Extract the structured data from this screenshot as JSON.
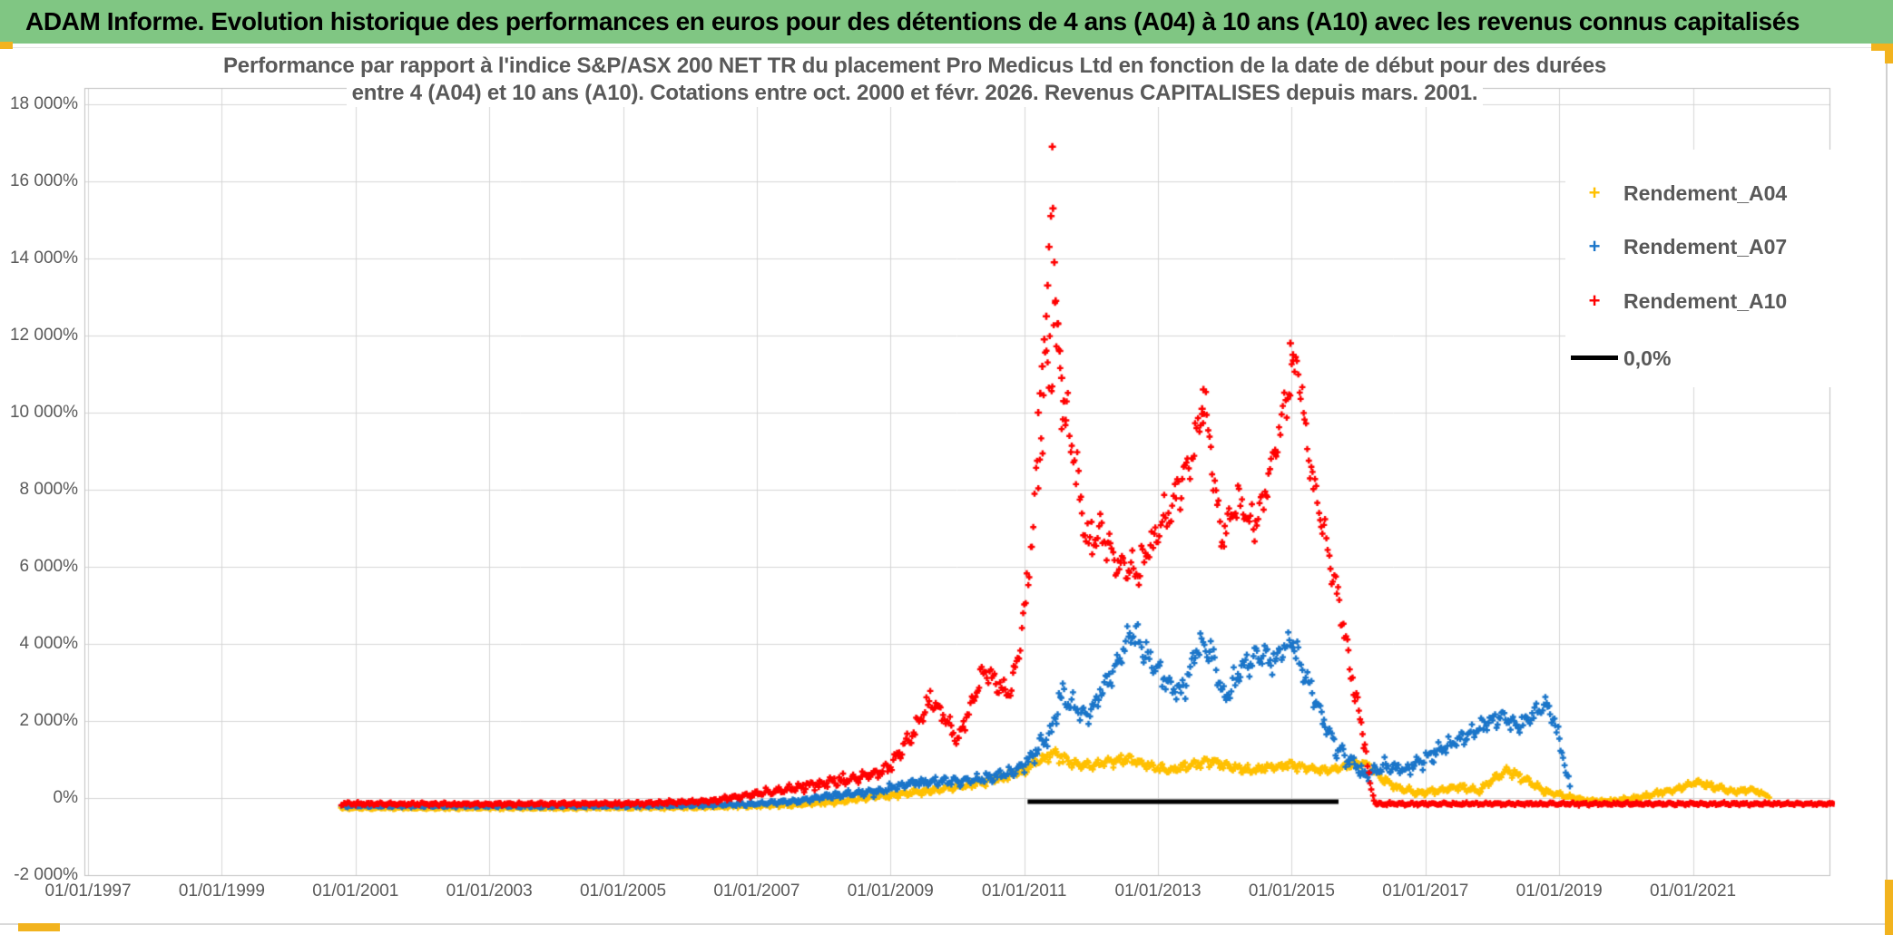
{
  "banner": {
    "text": "ADAM Informe. Evolution historique des performances en euros pour des détentions de 4 ans (A04) à 10 ans (A10) avec les revenus connus capitalisés",
    "bg": "#80c683",
    "fg": "#000000"
  },
  "chart": {
    "title_line1": "Performance par rapport à l'indice S&P/ASX 200 NET TR  du placement Pro Medicus Ltd en fonction de la date de début pour des durées",
    "title_line2": "entre 4 (A04) et 10 ans (A10). Cotations entre oct. 2000 et févr. 2026. Revenus CAPITALISES depuis mars. 2001."
  },
  "colors": {
    "grid": "#d6d6d6",
    "plot_border": "#bfbfbf",
    "axis_text": "#595959",
    "a04": "#ffc000",
    "a07": "#1a75c9",
    "a10": "#ff0000",
    "zero_line": "#000000",
    "selection_handle": "#f2b31e"
  },
  "legend": {
    "items": [
      {
        "label": "Rendement_A04",
        "color": "#ffc000",
        "marker": "plus",
        "offset_y": 31
      },
      {
        "label": "Rendement_A07",
        "color": "#1a75c9",
        "marker": "plus",
        "offset_y": 90
      },
      {
        "label": "Rendement_A10",
        "color": "#ff0000",
        "marker": "plus",
        "offset_y": 150
      },
      {
        "label": "0,0%",
        "color": "#000000",
        "marker": "line",
        "offset_y": 213
      }
    ]
  },
  "chart_data": {
    "type": "scatter",
    "marker": "plus",
    "x_axis": {
      "ticks": [
        {
          "label": "01/01/1997",
          "year": 1997
        },
        {
          "label": "01/01/1999",
          "year": 1999
        },
        {
          "label": "01/01/2001",
          "year": 2001
        },
        {
          "label": "01/01/2003",
          "year": 2003
        },
        {
          "label": "01/01/2005",
          "year": 2005
        },
        {
          "label": "01/01/2007",
          "year": 2007
        },
        {
          "label": "01/01/2009",
          "year": 2009
        },
        {
          "label": "01/01/2011",
          "year": 2011
        },
        {
          "label": "01/01/2013",
          "year": 2013
        },
        {
          "label": "01/01/2015",
          "year": 2015
        },
        {
          "label": "01/01/2017",
          "year": 2017
        },
        {
          "label": "01/01/2019",
          "year": 2019
        },
        {
          "label": "01/01/2021",
          "year": 2021
        }
      ],
      "min_year": 1997.0,
      "max_year": 2023.05
    },
    "y_axis": {
      "ticks": [
        {
          "label": "18 000%",
          "value": 18000
        },
        {
          "label": "16 000%",
          "value": 16000
        },
        {
          "label": "14 000%",
          "value": 14000
        },
        {
          "label": "12 000%",
          "value": 12000
        },
        {
          "label": "10 000%",
          "value": 10000
        },
        {
          "label": "8 000%",
          "value": 8000
        },
        {
          "label": "6 000%",
          "value": 6000
        },
        {
          "label": "4 000%",
          "value": 4000
        },
        {
          "label": "2 000%",
          "value": 2000
        },
        {
          "label": "0%",
          "value": 0
        },
        {
          "label": "-2 000%",
          "value": -2000
        }
      ],
      "min": -2000,
      "max": 18470
    },
    "series": [
      {
        "name": "Rendement_A04",
        "color": "#ffc000",
        "points_per_year": 52,
        "anchors": [
          [
            2000.79,
            -260,
            30
          ],
          [
            2004,
            -260,
            30
          ],
          [
            2006,
            -240,
            38
          ],
          [
            2007.5,
            -180,
            48
          ],
          [
            2008.3,
            -80,
            62
          ],
          [
            2008.8,
            40,
            72
          ],
          [
            2009.3,
            130,
            82
          ],
          [
            2009.8,
            240,
            92
          ],
          [
            2010.3,
            390,
            102
          ],
          [
            2010.7,
            530,
            112
          ],
          [
            2011.0,
            720,
            135
          ],
          [
            2011.2,
            960,
            155
          ],
          [
            2011.45,
            1160,
            155
          ],
          [
            2011.7,
            920,
            135
          ],
          [
            2012.0,
            830,
            125
          ],
          [
            2012.3,
            960,
            135
          ],
          [
            2012.6,
            1010,
            135
          ],
          [
            2012.9,
            810,
            122
          ],
          [
            2013.2,
            710,
            112
          ],
          [
            2013.5,
            860,
            122
          ],
          [
            2013.8,
            960,
            122
          ],
          [
            2014.1,
            810,
            112
          ],
          [
            2014.4,
            710,
            112
          ],
          [
            2014.7,
            810,
            112
          ],
          [
            2015.0,
            860,
            112
          ],
          [
            2015.3,
            760,
            112
          ],
          [
            2015.6,
            710,
            112
          ],
          [
            2015.9,
            860,
            122
          ],
          [
            2016.1,
            910,
            122
          ],
          [
            2016.35,
            510,
            112
          ],
          [
            2016.6,
            260,
            92
          ],
          [
            2016.9,
            130,
            82
          ],
          [
            2017.2,
            190,
            82
          ],
          [
            2017.5,
            290,
            92
          ],
          [
            2017.8,
            170,
            82
          ],
          [
            2018.1,
            610,
            122
          ],
          [
            2018.25,
            710,
            122
          ],
          [
            2018.5,
            460,
            112
          ],
          [
            2018.8,
            160,
            82
          ],
          [
            2019.1,
            60,
            62
          ],
          [
            2019.4,
            -60,
            52
          ],
          [
            2019.7,
            -90,
            52
          ],
          [
            2020.0,
            -40,
            52
          ],
          [
            2020.4,
            90,
            62
          ],
          [
            2020.8,
            260,
            82
          ],
          [
            2021.05,
            410,
            92
          ],
          [
            2021.3,
            290,
            82
          ],
          [
            2021.6,
            170,
            72
          ],
          [
            2021.85,
            230,
            72
          ],
          [
            2022.05,
            110,
            62
          ],
          [
            2022.15,
            30,
            45
          ]
        ],
        "extra_points": []
      },
      {
        "name": "Rendement_A07",
        "color": "#1a75c9",
        "points_per_year": 52,
        "anchors": [
          [
            2000.79,
            -200,
            35
          ],
          [
            2004,
            -210,
            35
          ],
          [
            2006,
            -190,
            40
          ],
          [
            2007,
            -150,
            55
          ],
          [
            2007.6,
            -80,
            60
          ],
          [
            2008.1,
            60,
            80
          ],
          [
            2008.4,
            110,
            90
          ],
          [
            2008.8,
            170,
            100
          ],
          [
            2009.3,
            380,
            110
          ],
          [
            2009.7,
            450,
            120
          ],
          [
            2010.0,
            420,
            120
          ],
          [
            2010.3,
            480,
            130
          ],
          [
            2010.6,
            560,
            140
          ],
          [
            2010.85,
            680,
            150
          ],
          [
            2011.05,
            950,
            200
          ],
          [
            2011.2,
            1300,
            280
          ],
          [
            2011.4,
            1700,
            320
          ],
          [
            2011.55,
            2700,
            380
          ],
          [
            2011.7,
            2400,
            300
          ],
          [
            2011.85,
            2250,
            280
          ],
          [
            2011.95,
            2100,
            280
          ],
          [
            2012.15,
            2750,
            320
          ],
          [
            2012.35,
            3350,
            340
          ],
          [
            2012.6,
            4350,
            380
          ],
          [
            2012.75,
            3950,
            340
          ],
          [
            2012.95,
            3450,
            320
          ],
          [
            2013.15,
            2950,
            320
          ],
          [
            2013.35,
            2750,
            320
          ],
          [
            2013.6,
            3950,
            350
          ],
          [
            2013.8,
            3750,
            340
          ],
          [
            2014.0,
            2550,
            320
          ],
          [
            2014.25,
            3350,
            340
          ],
          [
            2014.5,
            3750,
            340
          ],
          [
            2014.75,
            3550,
            340
          ],
          [
            2015.0,
            4150,
            350
          ],
          [
            2015.15,
            3350,
            320
          ],
          [
            2015.4,
            2350,
            300
          ],
          [
            2015.65,
            1350,
            270
          ],
          [
            2015.9,
            950,
            220
          ],
          [
            2016.1,
            580,
            160
          ],
          [
            2016.4,
            820,
            180
          ],
          [
            2016.7,
            720,
            170
          ],
          [
            2017.0,
            1020,
            190
          ],
          [
            2017.3,
            1320,
            210
          ],
          [
            2017.6,
            1620,
            230
          ],
          [
            2017.9,
            1920,
            230
          ],
          [
            2018.15,
            2120,
            230
          ],
          [
            2018.4,
            1820,
            230
          ],
          [
            2018.65,
            2220,
            240
          ],
          [
            2018.85,
            2380,
            240
          ],
          [
            2019.0,
            1550,
            260
          ],
          [
            2019.1,
            650,
            190
          ],
          [
            2019.16,
            300,
            90
          ]
        ],
        "extra_points": []
      },
      {
        "name": "Rendement_A10",
        "color": "#ff0000",
        "points_per_year": 52,
        "anchors": [
          [
            2000.79,
            -150,
            40
          ],
          [
            2003,
            -160,
            40
          ],
          [
            2005.3,
            -140,
            45
          ],
          [
            2006.3,
            -80,
            55
          ],
          [
            2006.8,
            60,
            80
          ],
          [
            2007.3,
            180,
            100
          ],
          [
            2007.7,
            300,
            120
          ],
          [
            2008.1,
            420,
            140
          ],
          [
            2008.5,
            520,
            150
          ],
          [
            2008.8,
            650,
            160
          ],
          [
            2009.0,
            850,
            180
          ],
          [
            2009.3,
            1600,
            220
          ],
          [
            2009.6,
            2550,
            250
          ],
          [
            2009.8,
            2150,
            230
          ],
          [
            2010.0,
            1450,
            220
          ],
          [
            2010.2,
            2400,
            240
          ],
          [
            2010.4,
            3350,
            260
          ],
          [
            2010.6,
            2950,
            240
          ],
          [
            2010.78,
            2700,
            240
          ],
          [
            2010.9,
            3600,
            300
          ],
          [
            2011.0,
            4800,
            450
          ],
          [
            2011.1,
            6500,
            700
          ],
          [
            2011.2,
            8500,
            1000
          ],
          [
            2011.3,
            10700,
            1200
          ],
          [
            2011.45,
            12100,
            1500
          ],
          [
            2011.6,
            10200,
            900
          ],
          [
            2011.75,
            8800,
            700
          ],
          [
            2011.95,
            6600,
            500
          ],
          [
            2012.15,
            6900,
            480
          ],
          [
            2012.4,
            6000,
            460
          ],
          [
            2012.7,
            5900,
            460
          ],
          [
            2012.95,
            6700,
            430
          ],
          [
            2013.2,
            7600,
            460
          ],
          [
            2013.45,
            8600,
            500
          ],
          [
            2013.7,
            10200,
            520
          ],
          [
            2013.95,
            6700,
            460
          ],
          [
            2014.2,
            7700,
            460
          ],
          [
            2014.45,
            7000,
            460
          ],
          [
            2014.7,
            8600,
            500
          ],
          [
            2014.95,
            10700,
            600
          ],
          [
            2015.08,
            11300,
            520
          ],
          [
            2015.25,
            8900,
            460
          ],
          [
            2015.5,
            6700,
            420
          ],
          [
            2015.75,
            4700,
            380
          ],
          [
            2015.95,
            2700,
            320
          ],
          [
            2016.1,
            1300,
            250
          ],
          [
            2016.18,
            300,
            120
          ],
          [
            2016.25,
            -150,
            35
          ],
          [
            2023.1,
            -150,
            35
          ]
        ],
        "extra_points": [
          [
            2011.42,
            16900
          ],
          [
            2011.4,
            15100
          ],
          [
            2011.43,
            15300
          ],
          [
            2011.37,
            14300
          ],
          [
            2011.45,
            13900
          ],
          [
            2011.35,
            13300
          ],
          [
            2011.47,
            12900
          ],
          [
            2011.33,
            12500
          ],
          [
            2011.5,
            12300
          ],
          [
            2011.3,
            11900
          ],
          [
            2011.53,
            11600
          ],
          [
            2011.27,
            11200
          ],
          [
            2011.56,
            10900
          ],
          [
            2011.24,
            10500
          ],
          [
            2011.59,
            10300
          ],
          [
            2011.21,
            10000
          ],
          [
            2011.62,
            9800
          ],
          [
            2013.68,
            10600
          ],
          [
            2013.66,
            10100
          ],
          [
            2014.98,
            11800
          ],
          [
            2015.02,
            11500
          ]
        ]
      }
    ],
    "reference_line": {
      "name": "0,0%",
      "value": 0,
      "x_start": 2011.05,
      "x_end": 2015.7,
      "color": "#000000"
    }
  }
}
